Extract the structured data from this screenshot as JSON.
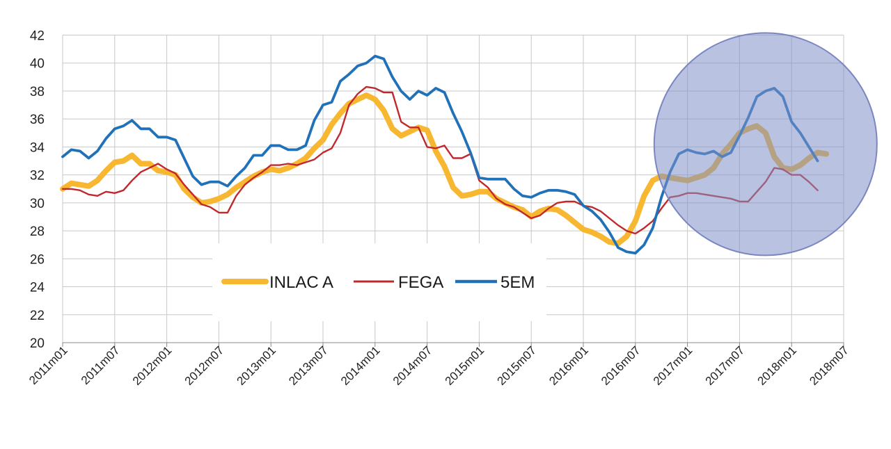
{
  "chart_data": {
    "type": "line",
    "title": "",
    "xlabel": "",
    "ylabel": "",
    "ylim": [
      20,
      42
    ],
    "yticks": [
      20,
      22,
      24,
      26,
      28,
      30,
      32,
      34,
      36,
      38,
      40,
      42
    ],
    "xticks": [
      "2011m01",
      "2011m07",
      "2012m01",
      "2012m07",
      "2013m01",
      "2013m07",
      "2014m01",
      "2014m07",
      "2015m01",
      "2015m07",
      "2016m01",
      "2016m07",
      "2017m01",
      "2017m07",
      "2018m01",
      "2018m07"
    ],
    "x_start": "2011m01",
    "grid": true,
    "legend_position": "bottom-center",
    "highlight": {
      "shape": "circle",
      "color": "#8090c8",
      "center_x": "2017m10",
      "center_y": 34.2
    },
    "series": [
      {
        "name": "INLAC A",
        "color": "#f7b731",
        "values": [
          31.0,
          31.4,
          31.3,
          31.2,
          31.6,
          32.3,
          32.9,
          33.0,
          33.4,
          32.8,
          32.8,
          32.3,
          32.2,
          32.0,
          31.0,
          30.4,
          30.0,
          30.1,
          30.3,
          30.6,
          31.1,
          31.5,
          31.9,
          32.2,
          32.4,
          32.3,
          32.5,
          32.8,
          33.2,
          33.9,
          34.5,
          35.6,
          36.4,
          37.1,
          37.4,
          37.7,
          37.4,
          36.6,
          35.3,
          34.8,
          35.1,
          35.4,
          35.2,
          33.7,
          32.6,
          31.1,
          30.5,
          30.6,
          30.8,
          30.8,
          30.3,
          30.0,
          29.7,
          29.5,
          29.0,
          29.4,
          29.6,
          29.5,
          29.1,
          28.6,
          28.1,
          27.9,
          27.6,
          27.2,
          27.1,
          27.6,
          28.7,
          30.5,
          31.6,
          31.9,
          31.8,
          31.7,
          31.6,
          31.8,
          32.0,
          32.5,
          33.5,
          34.2,
          35.0,
          35.3,
          35.5,
          35.0,
          33.3,
          32.5,
          32.4,
          32.7,
          33.2,
          33.6,
          33.5
        ]
      },
      {
        "name": "FEGA",
        "color": "#c0282c",
        "values": [
          31.0,
          31.0,
          30.9,
          30.6,
          30.5,
          30.8,
          30.7,
          30.9,
          31.6,
          32.2,
          32.5,
          32.8,
          32.4,
          32.1,
          31.3,
          30.6,
          29.9,
          29.7,
          29.3,
          29.3,
          30.5,
          31.3,
          31.8,
          32.2,
          32.7,
          32.7,
          32.8,
          32.7,
          32.9,
          33.1,
          33.6,
          33.9,
          35.0,
          37.0,
          37.8,
          38.3,
          38.2,
          37.9,
          37.9,
          35.8,
          35.4,
          35.4,
          34.0,
          33.9,
          34.1,
          33.2,
          33.2,
          33.5,
          31.6,
          31.1,
          30.3,
          29.9,
          29.7,
          29.3,
          28.9,
          29.1,
          29.6,
          30.0,
          30.1,
          30.1,
          29.8,
          29.7,
          29.4,
          28.9,
          28.4,
          28.0,
          27.8,
          28.2,
          28.7,
          29.6,
          30.4,
          30.5,
          30.7,
          30.7,
          30.6,
          30.5,
          30.4,
          30.3,
          30.1,
          30.1,
          30.8,
          31.5,
          32.5,
          32.4,
          32.0,
          32.0,
          31.5,
          30.9
        ]
      },
      {
        "name": "5EM",
        "color": "#2171b8",
        "values": [
          33.3,
          33.8,
          33.7,
          33.2,
          33.7,
          34.6,
          35.3,
          35.5,
          35.9,
          35.3,
          35.3,
          34.7,
          34.7,
          34.5,
          33.2,
          31.9,
          31.3,
          31.5,
          31.5,
          31.2,
          31.9,
          32.5,
          33.4,
          33.4,
          34.1,
          34.1,
          33.8,
          33.8,
          34.1,
          35.9,
          37.0,
          37.2,
          38.7,
          39.2,
          39.8,
          40.0,
          40.5,
          40.3,
          39.0,
          38.0,
          37.4,
          38.0,
          37.7,
          38.2,
          37.9,
          36.4,
          35.1,
          33.6,
          31.8,
          31.7,
          31.7,
          31.7,
          31.0,
          30.5,
          30.4,
          30.7,
          30.9,
          30.9,
          30.8,
          30.6,
          29.8,
          29.4,
          28.8,
          27.9,
          26.8,
          26.5,
          26.4,
          27.0,
          28.2,
          30.4,
          32.2,
          33.5,
          33.8,
          33.6,
          33.5,
          33.7,
          33.3,
          33.6,
          34.8,
          36.1,
          37.6,
          38.0,
          38.2,
          37.6,
          35.8,
          35.0,
          34.0,
          33.0
        ]
      }
    ]
  }
}
